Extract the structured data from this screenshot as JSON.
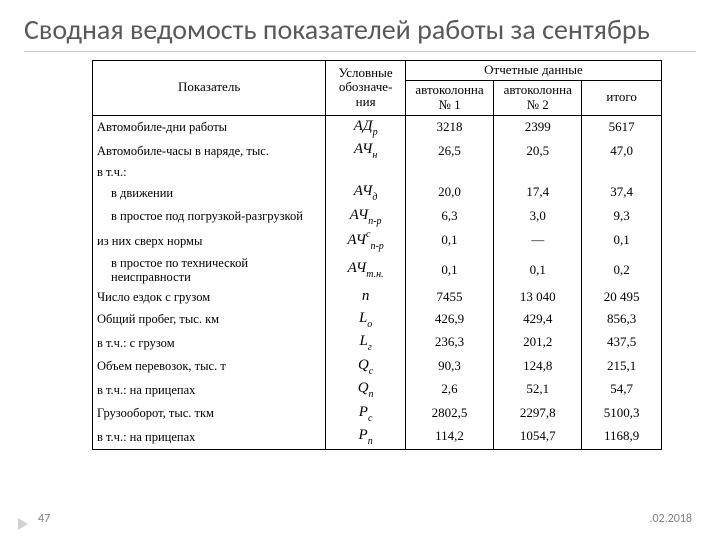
{
  "title": "Сводная ведомость показателей работы за сентябрь",
  "footer": {
    "page": "47",
    "date": ".02.2018"
  },
  "header": {
    "indicator": "Показатель",
    "symbol": "Условные обозначе-ния",
    "report": "Отчетные данные",
    "col1": "автоколонна № 1",
    "col2": "автоколонна № 2",
    "total": "итого"
  },
  "rows": [
    {
      "ind": "Автомобиле-дни работы",
      "pad": 0,
      "sym_base": "АД",
      "sym_sub": "р",
      "sym_sup": "",
      "c1": "3218",
      "c2": "2399",
      "c3": "5617"
    },
    {
      "ind": "Автомобиле-часы в наряде, тыс.",
      "pad": 0,
      "sym_base": "АЧ",
      "sym_sub": "н",
      "sym_sup": "",
      "c1": "26,5",
      "c2": "20,5",
      "c3": "47,0"
    },
    {
      "ind": "в т.ч.:",
      "pad": 0,
      "sym_base": "",
      "sym_sub": "",
      "sym_sup": "",
      "c1": "",
      "c2": "",
      "c3": ""
    },
    {
      "ind": "в движении",
      "pad": 1,
      "sym_base": "АЧ",
      "sym_sub": "д",
      "sym_sup": "",
      "c1": "20,0",
      "c2": "17,4",
      "c3": "37,4"
    },
    {
      "ind": "в простое под погрузкой-разгрузкой",
      "pad": 1,
      "sym_base": "АЧ",
      "sym_sub": "п-р",
      "sym_sup": "",
      "c1": "6,3",
      "c2": "3,0",
      "c3": "9,3"
    },
    {
      "ind": "из них сверх нормы",
      "pad": 0,
      "sym_base": "АЧ",
      "sym_sub": "п-р",
      "sym_sup": "с",
      "c1": "0,1",
      "c2": "—",
      "c3": "0,1"
    },
    {
      "ind": "в простое по технической неисправности",
      "pad": 1,
      "sym_base": "АЧ",
      "sym_sub": "т.н.",
      "sym_sup": "",
      "c1": "0,1",
      "c2": "0,1",
      "c3": "0,2"
    },
    {
      "ind": "Число ездок с грузом",
      "pad": 0,
      "sym_base": "n",
      "sym_sub": "",
      "sym_sup": "",
      "c1": "7455",
      "c2": "13 040",
      "c3": "20 495"
    },
    {
      "ind": "Общий пробег, тыс. км",
      "pad": 0,
      "sym_base": "L",
      "sym_sub": "о",
      "sym_sup": "",
      "c1": "426,9",
      "c2": "429,4",
      "c3": "856,3"
    },
    {
      "ind": "в т.ч.: с грузом",
      "pad": 0,
      "sym_base": "L",
      "sym_sub": "г",
      "sym_sup": "",
      "c1": "236,3",
      "c2": "201,2",
      "c3": "437,5"
    },
    {
      "ind": "Объем перевозок, тыс. т",
      "pad": 0,
      "sym_base": "Q",
      "sym_sub": "с",
      "sym_sup": "",
      "c1": "90,3",
      "c2": "124,8",
      "c3": "215,1"
    },
    {
      "ind": "в т.ч.: на прицепах",
      "pad": 0,
      "sym_base": "Q",
      "sym_sub": "п",
      "sym_sup": "",
      "c1": "2,6",
      "c2": "52,1",
      "c3": "54,7"
    },
    {
      "ind": "Грузооборот, тыс. ткм",
      "pad": 0,
      "sym_base": "P",
      "sym_sub": "с",
      "sym_sup": "",
      "c1": "2802,5",
      "c2": "2297,8",
      "c3": "5100,3"
    },
    {
      "ind": "в т.ч.: на прицепах",
      "pad": 0,
      "sym_base": "P",
      "sym_sub": "п",
      "sym_sup": "",
      "c1": "114,2",
      "c2": "1054,7",
      "c3": "1168,9"
    }
  ]
}
